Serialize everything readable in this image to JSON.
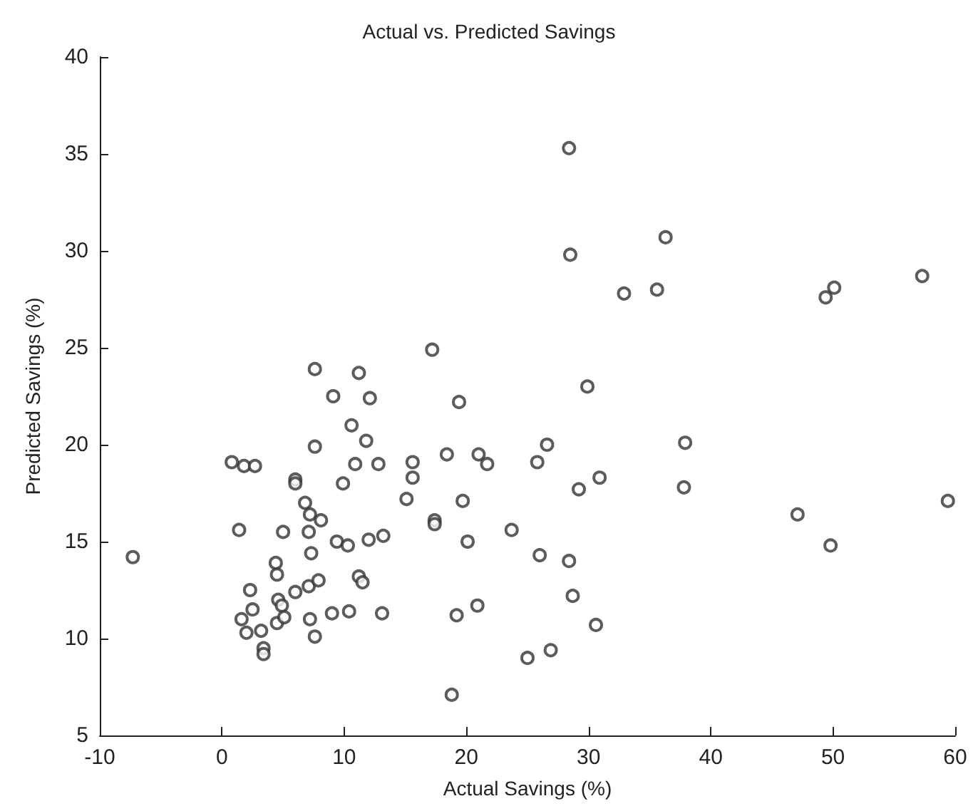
{
  "chart_data": {
    "type": "scatter",
    "title": "Actual vs. Predicted Savings",
    "xlabel": "Actual Savings (%)",
    "ylabel": "Predicted Savings (%)",
    "xlim": [
      -10,
      60
    ],
    "xticks": [
      -10,
      0,
      10,
      20,
      30,
      40,
      50,
      60
    ],
    "ylim": [
      5,
      40
    ],
    "yticks": [
      5,
      10,
      15,
      20,
      25,
      30,
      35,
      40
    ],
    "grid": false,
    "marker": "circle",
    "series": [
      {
        "color": "#333333",
        "x": [
          -7.3,
          1.4,
          5.0,
          6.8,
          7.2,
          8.1,
          7.1,
          7.3,
          9.4,
          10.3,
          12.0,
          13.2,
          15.1,
          4.4,
          4.5,
          2.3,
          6.0,
          7.1,
          7.9,
          11.2,
          11.5,
          4.6,
          4.9,
          2.5,
          1.6,
          4.5,
          5.1,
          7.2,
          9.0,
          10.4,
          13.1,
          2.0,
          3.2,
          7.6,
          3.4,
          3.4,
          7.6,
          11.2,
          9.1,
          12.1,
          10.6,
          11.8,
          7.6,
          0.8,
          1.8,
          2.7,
          10.9,
          12.8,
          15.6,
          15.6,
          6.0,
          6.0,
          9.9,
          32.9,
          35.6,
          17.2,
          29.9,
          19.4,
          26.6,
          18.4,
          21.0,
          21.7,
          25.8,
          30.9,
          29.2,
          19.7,
          17.4,
          17.4,
          23.7,
          20.1,
          26.0,
          28.4,
          28.7,
          20.9,
          19.2,
          30.6,
          26.9,
          25.0,
          18.8,
          28.4,
          36.3,
          28.5,
          57.3,
          50.1,
          49.4,
          37.9,
          37.8,
          47.1,
          49.8,
          59.4
        ],
        "values": [
          14.2,
          15.6,
          15.5,
          17.0,
          16.4,
          16.1,
          15.5,
          14.4,
          15.0,
          14.8,
          15.1,
          15.3,
          17.2,
          13.9,
          13.3,
          12.5,
          12.4,
          12.7,
          13.0,
          13.2,
          12.9,
          12.0,
          11.7,
          11.5,
          11.0,
          10.8,
          11.1,
          11.0,
          11.3,
          11.4,
          11.3,
          10.3,
          10.4,
          10.1,
          9.5,
          9.2,
          23.9,
          23.7,
          22.5,
          22.4,
          21.0,
          20.2,
          19.9,
          19.1,
          18.9,
          18.9,
          19.0,
          19.0,
          19.1,
          18.3,
          18.2,
          18.0,
          18.0,
          27.8,
          28.0,
          24.9,
          23.0,
          22.2,
          20.0,
          19.5,
          19.5,
          19.0,
          19.1,
          18.3,
          17.7,
          17.1,
          16.1,
          15.9,
          15.6,
          15.0,
          14.3,
          14.0,
          12.2,
          11.7,
          11.2,
          10.7,
          9.4,
          9.0,
          7.1,
          35.3,
          30.7,
          29.8,
          28.7,
          28.1,
          27.6,
          20.1,
          17.8,
          16.4,
          14.8,
          17.1
        ]
      }
    ]
  }
}
